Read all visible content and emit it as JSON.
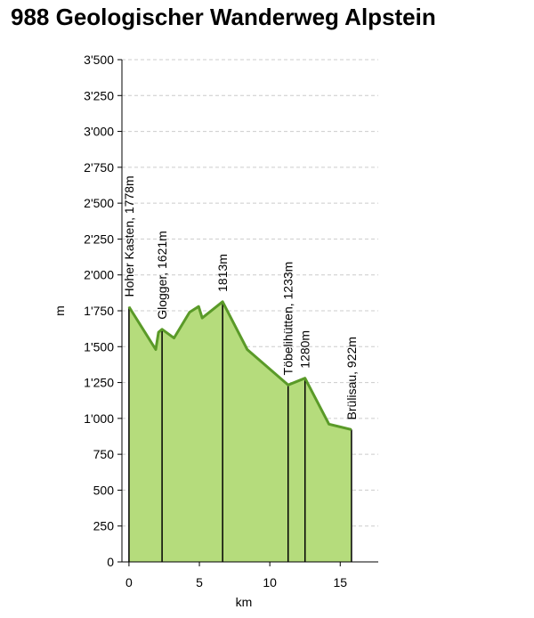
{
  "title": "988 Geologischer Wanderweg Alpstein",
  "colors": {
    "fill": "#b5dc7c",
    "line": "#5a9a28",
    "grid": "#cccccc",
    "axis": "#000000",
    "marker": "#000000"
  },
  "chart_data": {
    "type": "area",
    "xlabel": "km",
    "ylabel": "m",
    "xlim": [
      -0.5,
      17.7
    ],
    "ylim": [
      0,
      3500
    ],
    "xticks": [
      0,
      5,
      10,
      15
    ],
    "xtick_labels": [
      "0",
      "5",
      "10",
      "15"
    ],
    "yticks": [
      0,
      250,
      500,
      750,
      1000,
      1250,
      1500,
      1750,
      2000,
      2250,
      2500,
      2750,
      3000,
      3250,
      3500
    ],
    "ytick_labels": [
      "0",
      "250",
      "500",
      "750",
      "1'000",
      "1'250",
      "1'500",
      "1'750",
      "2'000",
      "2'250",
      "2'500",
      "2'750",
      "3'000",
      "3'250",
      "3'500"
    ],
    "grid": true,
    "x": [
      0.0,
      1.9,
      2.1,
      2.35,
      3.2,
      4.3,
      4.95,
      5.2,
      6.65,
      8.4,
      11.3,
      12.5,
      14.2,
      15.8
    ],
    "y": [
      1778,
      1480,
      1600,
      1621,
      1560,
      1740,
      1780,
      1700,
      1813,
      1480,
      1233,
      1280,
      960,
      922
    ],
    "annotations": [
      {
        "x": 0.0,
        "y": 1778,
        "label": "Hoher Kasten, 1778m"
      },
      {
        "x": 2.35,
        "y": 1621,
        "label": "Glogger, 1621m"
      },
      {
        "x": 6.65,
        "y": 1813,
        "label": "1813m"
      },
      {
        "x": 11.3,
        "y": 1233,
        "label": "Töbelihütten, 1233m"
      },
      {
        "x": 12.5,
        "y": 1280,
        "label": "1280m"
      },
      {
        "x": 15.8,
        "y": 922,
        "label": "Brülisau, 922m"
      }
    ]
  }
}
